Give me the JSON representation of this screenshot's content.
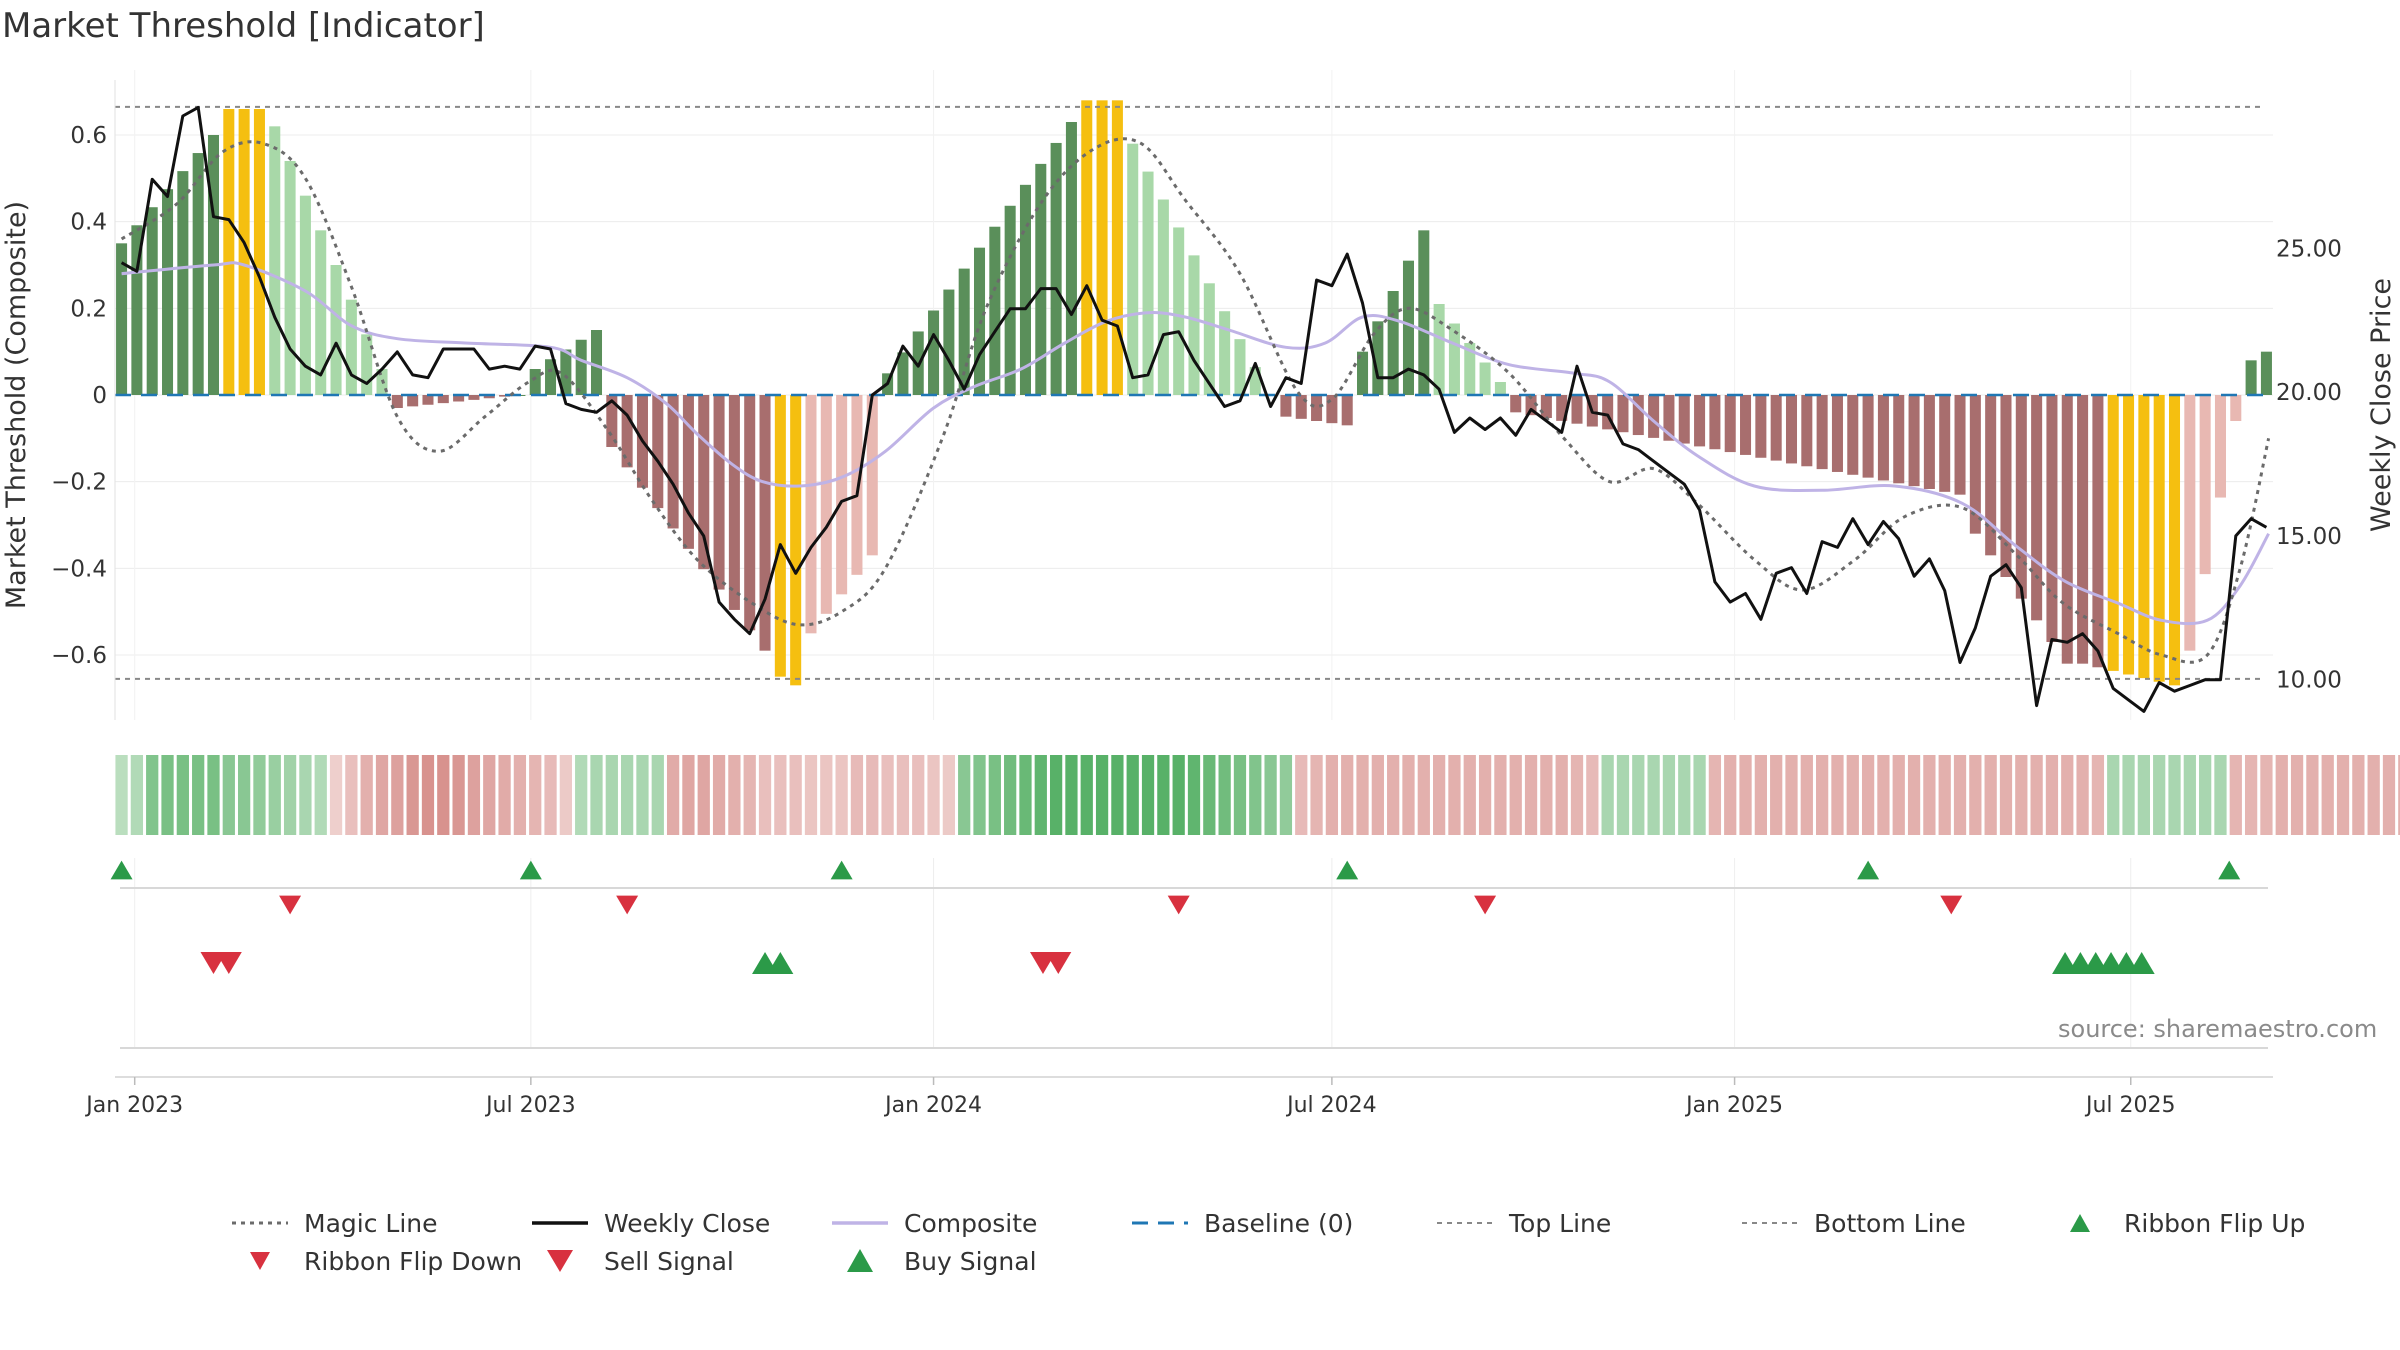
{
  "title": "Market Threshold [Indicator]",
  "source": "source: sharemaestro.com",
  "colors": {
    "strong_green": "#5a8f5a",
    "light_green": "#a8d8a8",
    "strong_red": "#a86e6e",
    "light_red": "#e8b8b2",
    "extreme": "#f5bf10",
    "close": "#111111",
    "composite": "#bfb3e6",
    "magic": "#6b6b6b",
    "baseline": "#1f77b4",
    "threshold": "#888888",
    "buy": "#2b9a48",
    "sell": "#d8313f"
  },
  "legend": [
    {
      "key": "magic",
      "label": "Magic Line"
    },
    {
      "key": "close",
      "label": "Weekly Close"
    },
    {
      "key": "composite",
      "label": "Composite"
    },
    {
      "key": "baseline",
      "label": "Baseline (0)"
    },
    {
      "key": "top",
      "label": "Top Line"
    },
    {
      "key": "bottom",
      "label": "Bottom Line"
    },
    {
      "key": "flip_up",
      "label": "Ribbon Flip Up"
    },
    {
      "key": "flip_down",
      "label": "Ribbon Flip Down"
    },
    {
      "key": "sell",
      "label": "Sell Signal"
    },
    {
      "key": "buy",
      "label": "Buy Signal"
    }
  ],
  "chart_data": {
    "type": "bar",
    "title": "Market Threshold [Indicator]",
    "ylabel": "Market Threshold (Composite)",
    "y2label": "Weekly Close Price",
    "ylim": [
      -0.75,
      0.75
    ],
    "y_ticks": [
      -0.6,
      -0.4,
      -0.2,
      0,
      0.2,
      0.4,
      0.6
    ],
    "y_tick_labels": [
      "−0.6",
      "−0.4",
      "−0.2",
      "0",
      "0.2",
      "0.4",
      "0.6"
    ],
    "y2lim": [
      8.6,
      31.2
    ],
    "y2_ticks": [
      10,
      15,
      20,
      25
    ],
    "y2_tick_labels": [
      "10.00",
      "15.00",
      "20.00",
      "25.00"
    ],
    "top_line": 0.665,
    "bottom_line": -0.655,
    "x_start": "2022-12-26",
    "x_end": "2025-09-01",
    "x_ticks": [
      "2023-01-01",
      "2023-07-01",
      "2024-01-01",
      "2024-07-01",
      "2025-01-01",
      "2025-07-01"
    ],
    "x_tick_labels": [
      "Jan 2023",
      "Jul 2023",
      "Jan 2024",
      "Jul 2024",
      "Jan 2025",
      "Jul 2025"
    ],
    "grid": true,
    "legend_position": "bottom",
    "composite_bars": [
      {
        "start": "2022-12-26",
        "end": "2023-02-06",
        "from": 0.35,
        "to": 0.6
      },
      {
        "start": "2023-02-13",
        "end": "2023-02-27",
        "from": 0.66,
        "to": 0.66
      },
      {
        "start": "2023-03-06",
        "end": "2023-04-24",
        "from": 0.62,
        "to": 0.06
      },
      {
        "start": "2023-05-01",
        "end": "2023-06-26",
        "from": -0.03,
        "to": 0.0
      },
      {
        "start": "2023-07-03",
        "end": "2023-07-31",
        "from": 0.06,
        "to": 0.15
      },
      {
        "start": "2023-08-07",
        "end": "2023-10-16",
        "from": -0.12,
        "to": -0.59
      },
      {
        "start": "2023-10-23",
        "end": "2023-10-30",
        "from": -0.65,
        "to": -0.67
      },
      {
        "start": "2023-11-06",
        "end": "2023-12-04",
        "from": -0.55,
        "to": -0.37
      },
      {
        "start": "2023-12-11",
        "end": "2024-03-04",
        "from": 0.05,
        "to": 0.63
      },
      {
        "start": "2024-03-11",
        "end": "2024-03-25",
        "from": 0.68,
        "to": 0.68
      },
      {
        "start": "2024-04-01",
        "end": "2024-06-03",
        "from": 0.58,
        "to": 0.0
      },
      {
        "start": "2024-06-10",
        "end": "2024-07-08",
        "from": -0.05,
        "to": -0.07
      },
      {
        "start": "2024-07-15",
        "end": "2024-08-12",
        "from": 0.1,
        "to": 0.38
      },
      {
        "start": "2024-08-19",
        "end": "2024-09-16",
        "from": 0.21,
        "to": 0.03
      },
      {
        "start": "2024-09-23",
        "end": "2025-04-14",
        "from": -0.04,
        "to": -0.23
      },
      {
        "start": "2025-04-21",
        "end": "2025-06-02",
        "from": -0.32,
        "to": -0.62
      },
      {
        "start": "2025-06-09",
        "end": "2025-07-21",
        "from": -0.62,
        "to": -0.67
      },
      {
        "start": "2025-07-28",
        "end": "2025-08-18",
        "from": -0.59,
        "to": -0.06
      },
      {
        "start": "2025-08-25",
        "end": "2025-09-01",
        "from": 0.08,
        "to": 0.1
      }
    ],
    "weekly_close": [
      [
        "2022-12-26",
        24.5
      ],
      [
        "2023-01-02",
        24.2
      ],
      [
        "2023-01-09",
        27.4
      ],
      [
        "2023-01-16",
        26.8
      ],
      [
        "2023-01-23",
        29.6
      ],
      [
        "2023-01-30",
        29.9
      ],
      [
        "2023-02-06",
        26.1
      ],
      [
        "2023-02-13",
        26.0
      ],
      [
        "2023-02-20",
        25.2
      ],
      [
        "2023-02-27",
        24.0
      ],
      [
        "2023-03-06",
        22.6
      ],
      [
        "2023-03-13",
        21.5
      ],
      [
        "2023-03-20",
        20.9
      ],
      [
        "2023-03-27",
        20.6
      ],
      [
        "2023-04-03",
        21.7
      ],
      [
        "2023-04-10",
        20.6
      ],
      [
        "2023-04-17",
        20.3
      ],
      [
        "2023-04-24",
        20.8
      ],
      [
        "2023-05-01",
        21.4
      ],
      [
        "2023-05-08",
        20.6
      ],
      [
        "2023-05-15",
        20.5
      ],
      [
        "2023-05-22",
        21.5
      ],
      [
        "2023-05-29",
        21.5
      ],
      [
        "2023-06-05",
        21.5
      ],
      [
        "2023-06-12",
        20.8
      ],
      [
        "2023-06-19",
        20.9
      ],
      [
        "2023-06-26",
        20.8
      ],
      [
        "2023-07-03",
        21.6
      ],
      [
        "2023-07-10",
        21.5
      ],
      [
        "2023-07-17",
        19.6
      ],
      [
        "2023-07-24",
        19.4
      ],
      [
        "2023-07-31",
        19.3
      ],
      [
        "2023-08-07",
        19.7
      ],
      [
        "2023-08-14",
        19.2
      ],
      [
        "2023-08-21",
        18.3
      ],
      [
        "2023-08-28",
        17.6
      ],
      [
        "2023-09-04",
        16.8
      ],
      [
        "2023-09-11",
        15.8
      ],
      [
        "2023-09-18",
        15.0
      ],
      [
        "2023-09-25",
        12.7
      ],
      [
        "2023-10-02",
        12.1
      ],
      [
        "2023-10-09",
        11.6
      ],
      [
        "2023-10-16",
        12.8
      ],
      [
        "2023-10-23",
        14.7
      ],
      [
        "2023-10-30",
        13.7
      ],
      [
        "2023-11-06",
        14.6
      ],
      [
        "2023-11-13",
        15.3
      ],
      [
        "2023-11-20",
        16.2
      ],
      [
        "2023-11-27",
        16.4
      ],
      [
        "2023-12-04",
        19.9
      ],
      [
        "2023-12-11",
        20.3
      ],
      [
        "2023-12-18",
        21.6
      ],
      [
        "2023-12-25",
        20.9
      ],
      [
        "2024-01-01",
        22.0
      ],
      [
        "2024-01-08",
        21.1
      ],
      [
        "2024-01-15",
        20.1
      ],
      [
        "2024-01-22",
        21.3
      ],
      [
        "2024-01-29",
        22.1
      ],
      [
        "2024-02-05",
        22.9
      ],
      [
        "2024-02-12",
        22.9
      ],
      [
        "2024-02-19",
        23.6
      ],
      [
        "2024-02-26",
        23.6
      ],
      [
        "2024-03-04",
        22.7
      ],
      [
        "2024-03-11",
        23.7
      ],
      [
        "2024-03-18",
        22.5
      ],
      [
        "2024-03-25",
        22.3
      ],
      [
        "2024-04-01",
        20.5
      ],
      [
        "2024-04-08",
        20.6
      ],
      [
        "2024-04-15",
        22.0
      ],
      [
        "2024-04-22",
        22.1
      ],
      [
        "2024-04-29",
        21.1
      ],
      [
        "2024-05-06",
        20.3
      ],
      [
        "2024-05-13",
        19.5
      ],
      [
        "2024-05-20",
        19.7
      ],
      [
        "2024-05-27",
        21.0
      ],
      [
        "2024-06-03",
        19.5
      ],
      [
        "2024-06-10",
        20.5
      ],
      [
        "2024-06-17",
        20.3
      ],
      [
        "2024-06-24",
        23.9
      ],
      [
        "2024-07-01",
        23.7
      ],
      [
        "2024-07-08",
        24.8
      ],
      [
        "2024-07-15",
        23.1
      ],
      [
        "2024-07-22",
        20.5
      ],
      [
        "2024-07-29",
        20.5
      ],
      [
        "2024-08-05",
        20.8
      ],
      [
        "2024-08-12",
        20.6
      ],
      [
        "2024-08-19",
        20.1
      ],
      [
        "2024-08-26",
        18.6
      ],
      [
        "2024-09-02",
        19.1
      ],
      [
        "2024-09-09",
        18.7
      ],
      [
        "2024-09-16",
        19.1
      ],
      [
        "2024-09-23",
        18.5
      ],
      [
        "2024-09-30",
        19.4
      ],
      [
        "2024-10-07",
        19.0
      ],
      [
        "2024-10-14",
        18.6
      ],
      [
        "2024-10-21",
        20.9
      ],
      [
        "2024-10-28",
        19.3
      ],
      [
        "2024-11-04",
        19.2
      ],
      [
        "2024-11-11",
        18.2
      ],
      [
        "2024-11-18",
        18.0
      ],
      [
        "2024-11-25",
        17.6
      ],
      [
        "2024-12-02",
        17.2
      ],
      [
        "2024-12-09",
        16.8
      ],
      [
        "2024-12-16",
        15.9
      ],
      [
        "2024-12-23",
        13.4
      ],
      [
        "2024-12-30",
        12.7
      ],
      [
        "2025-01-06",
        13.0
      ],
      [
        "2025-01-13",
        12.1
      ],
      [
        "2025-01-20",
        13.7
      ],
      [
        "2025-01-27",
        13.9
      ],
      [
        "2025-02-03",
        13.0
      ],
      [
        "2025-02-10",
        14.8
      ],
      [
        "2025-02-17",
        14.6
      ],
      [
        "2025-02-24",
        15.6
      ],
      [
        "2025-03-03",
        14.7
      ],
      [
        "2025-03-10",
        15.5
      ],
      [
        "2025-03-17",
        14.9
      ],
      [
        "2025-03-24",
        13.6
      ],
      [
        "2025-03-31",
        14.2
      ],
      [
        "2025-04-07",
        13.1
      ],
      [
        "2025-04-14",
        10.6
      ],
      [
        "2025-04-21",
        11.8
      ],
      [
        "2025-04-28",
        13.6
      ],
      [
        "2025-05-05",
        14.0
      ],
      [
        "2025-05-12",
        13.2
      ],
      [
        "2025-05-19",
        9.1
      ],
      [
        "2025-05-26",
        11.4
      ],
      [
        "2025-06-02",
        11.3
      ],
      [
        "2025-06-09",
        11.6
      ],
      [
        "2025-06-16",
        11.0
      ],
      [
        "2025-06-23",
        9.7
      ],
      [
        "2025-06-30",
        9.3
      ],
      [
        "2025-07-07",
        8.9
      ],
      [
        "2025-07-14",
        9.9
      ],
      [
        "2025-07-21",
        9.6
      ],
      [
        "2025-07-28",
        9.8
      ],
      [
        "2025-08-04",
        10.0
      ],
      [
        "2025-08-11",
        10.0
      ],
      [
        "2025-08-18",
        15.0
      ],
      [
        "2025-08-25",
        15.6
      ],
      [
        "2025-09-01",
        15.3
      ]
    ],
    "composite_line": [
      [
        "2022-12-26",
        0.28
      ],
      [
        "2023-02-06",
        0.3
      ],
      [
        "2023-02-20",
        0.3
      ],
      [
        "2023-03-20",
        0.24
      ],
      [
        "2023-04-10",
        0.16
      ],
      [
        "2023-05-01",
        0.13
      ],
      [
        "2023-06-01",
        0.12
      ],
      [
        "2023-07-10",
        0.11
      ],
      [
        "2023-07-24",
        0.08
      ],
      [
        "2023-08-14",
        0.04
      ],
      [
        "2023-09-01",
        -0.02
      ],
      [
        "2023-09-15",
        -0.09
      ],
      [
        "2023-10-01",
        -0.16
      ],
      [
        "2023-10-15",
        -0.2
      ],
      [
        "2023-11-01",
        -0.21
      ],
      [
        "2023-11-20",
        -0.19
      ],
      [
        "2023-12-10",
        -0.13
      ],
      [
        "2024-01-01",
        -0.03
      ],
      [
        "2024-01-20",
        0.02
      ],
      [
        "2024-02-10",
        0.06
      ],
      [
        "2024-03-01",
        0.12
      ],
      [
        "2024-03-20",
        0.17
      ],
      [
        "2024-04-08",
        0.19
      ],
      [
        "2024-04-25",
        0.18
      ],
      [
        "2024-05-15",
        0.15
      ],
      [
        "2024-06-10",
        0.11
      ],
      [
        "2024-06-28",
        0.12
      ],
      [
        "2024-07-15",
        0.18
      ],
      [
        "2024-08-01",
        0.17
      ],
      [
        "2024-08-25",
        0.12
      ],
      [
        "2024-09-20",
        0.07
      ],
      [
        "2024-10-20",
        0.05
      ],
      [
        "2024-11-05",
        0.03
      ],
      [
        "2024-11-25",
        -0.06
      ],
      [
        "2024-12-15",
        -0.14
      ],
      [
        "2025-01-10",
        -0.21
      ],
      [
        "2025-02-10",
        -0.22
      ],
      [
        "2025-03-15",
        -0.21
      ],
      [
        "2025-04-15",
        -0.25
      ],
      [
        "2025-05-10",
        -0.35
      ],
      [
        "2025-06-01",
        -0.43
      ],
      [
        "2025-06-25",
        -0.48
      ],
      [
        "2025-07-15",
        -0.52
      ],
      [
        "2025-08-05",
        -0.52
      ],
      [
        "2025-08-20",
        -0.44
      ],
      [
        "2025-09-02",
        -0.32
      ]
    ],
    "magic_line": [
      [
        "2022-12-26",
        0.36
      ],
      [
        "2023-01-20",
        0.44
      ],
      [
        "2023-02-10",
        0.56
      ],
      [
        "2023-03-01",
        0.58
      ],
      [
        "2023-03-20",
        0.5
      ],
      [
        "2023-04-10",
        0.25
      ],
      [
        "2023-05-01",
        -0.05
      ],
      [
        "2023-05-20",
        -0.13
      ],
      [
        "2023-06-10",
        -0.05
      ],
      [
        "2023-06-30",
        0.03
      ],
      [
        "2023-07-15",
        0.05
      ],
      [
        "2023-08-05",
        -0.08
      ],
      [
        "2023-08-25",
        -0.24
      ],
      [
        "2023-09-15",
        -0.38
      ],
      [
        "2023-10-10",
        -0.48
      ],
      [
        "2023-10-31",
        -0.53
      ],
      [
        "2023-11-20",
        -0.5
      ],
      [
        "2023-12-10",
        -0.4
      ],
      [
        "2024-01-05",
        -0.1
      ],
      [
        "2024-01-25",
        0.2
      ],
      [
        "2024-02-20",
        0.45
      ],
      [
        "2024-03-15",
        0.57
      ],
      [
        "2024-04-05",
        0.58
      ],
      [
        "2024-04-25",
        0.45
      ],
      [
        "2024-05-20",
        0.28
      ],
      [
        "2024-06-15",
        0.01
      ],
      [
        "2024-07-01",
        -0.01
      ],
      [
        "2024-07-20",
        0.14
      ],
      [
        "2024-08-05",
        0.2
      ],
      [
        "2024-08-25",
        0.15
      ],
      [
        "2024-09-20",
        0.05
      ],
      [
        "2024-10-15",
        -0.1
      ],
      [
        "2024-11-05",
        -0.2
      ],
      [
        "2024-11-25",
        -0.17
      ],
      [
        "2024-12-15",
        -0.25
      ],
      [
        "2025-01-10",
        -0.38
      ],
      [
        "2025-02-01",
        -0.45
      ],
      [
        "2025-02-25",
        -0.38
      ],
      [
        "2025-03-20",
        -0.28
      ],
      [
        "2025-04-15",
        -0.26
      ],
      [
        "2025-05-10",
        -0.37
      ],
      [
        "2025-05-31",
        -0.48
      ],
      [
        "2025-06-25",
        -0.55
      ],
      [
        "2025-07-15",
        -0.6
      ],
      [
        "2025-08-05",
        -0.6
      ],
      [
        "2025-08-20",
        -0.4
      ],
      [
        "2025-09-02",
        -0.1
      ]
    ],
    "ribbon": [
      0.25,
      0.3,
      0.6,
      0.65,
      0.65,
      0.65,
      0.65,
      0.55,
      0.55,
      0.5,
      0.45,
      0.4,
      0.35,
      0.3,
      -0.15,
      -0.3,
      -0.45,
      -0.55,
      -0.6,
      -0.7,
      -0.75,
      -0.75,
      -0.7,
      -0.6,
      -0.55,
      -0.5,
      -0.45,
      -0.4,
      -0.35,
      -0.2,
      0.3,
      0.35,
      0.35,
      0.35,
      0.35,
      0.35,
      -0.5,
      -0.55,
      -0.55,
      -0.5,
      -0.45,
      -0.4,
      -0.3,
      -0.3,
      -0.3,
      -0.25,
      -0.25,
      -0.25,
      -0.35,
      -0.35,
      -0.3,
      -0.3,
      -0.3,
      -0.25,
      -0.2,
      0.55,
      0.6,
      0.65,
      0.7,
      0.75,
      0.8,
      0.85,
      0.85,
      0.85,
      0.85,
      0.85,
      0.85,
      0.85,
      0.85,
      0.85,
      0.8,
      0.75,
      0.7,
      0.65,
      0.6,
      0.55,
      0.5,
      -0.35,
      -0.4,
      -0.45,
      -0.45,
      -0.45,
      -0.45,
      -0.45,
      -0.45,
      -0.45,
      -0.45,
      -0.45,
      -0.45,
      -0.45,
      -0.45,
      -0.45,
      -0.45,
      -0.45,
      -0.45,
      -0.4,
      -0.35,
      0.35,
      0.35,
      0.35,
      0.35,
      0.35,
      0.35,
      0.35,
      -0.4,
      -0.45,
      -0.45,
      -0.45,
      -0.45,
      -0.45,
      -0.45,
      -0.45,
      -0.45,
      -0.45,
      -0.45,
      -0.45,
      -0.45,
      -0.45,
      -0.45,
      -0.45,
      -0.45,
      -0.45,
      -0.45,
      -0.45,
      -0.45,
      -0.45,
      -0.45,
      -0.45,
      -0.45,
      -0.4,
      0.35,
      0.35,
      0.35,
      0.35,
      0.35,
      0.35,
      0.35,
      0.35,
      -0.4,
      -0.4,
      -0.4,
      -0.45,
      -0.45,
      -0.45,
      -0.45,
      -0.45,
      -0.45,
      -0.45,
      -0.45,
      -0.45,
      -0.45,
      -0.45,
      -0.45,
      -0.45,
      -0.45,
      -0.45,
      -0.45,
      -0.4,
      0.45,
      0.45,
      0.5,
      0.6,
      0.7,
      0.75,
      0.75,
      0.75
    ],
    "ribbon_flip_up": [
      "2022-12-26",
      "2023-07-01",
      "2023-11-20",
      "2024-07-08",
      "2025-03-03",
      "2025-08-15"
    ],
    "ribbon_flip_down": [
      "2023-03-13",
      "2023-08-14",
      "2024-04-22",
      "2024-09-09",
      "2025-04-10"
    ],
    "sell_signals": [
      "2023-02-06",
      "2023-02-13",
      "2024-02-20",
      "2024-02-27"
    ],
    "buy_signals": [
      "2023-10-16",
      "2023-10-23",
      "2025-06-01",
      "2025-06-08",
      "2025-06-15",
      "2025-06-22",
      "2025-06-29",
      "2025-07-06"
    ]
  }
}
